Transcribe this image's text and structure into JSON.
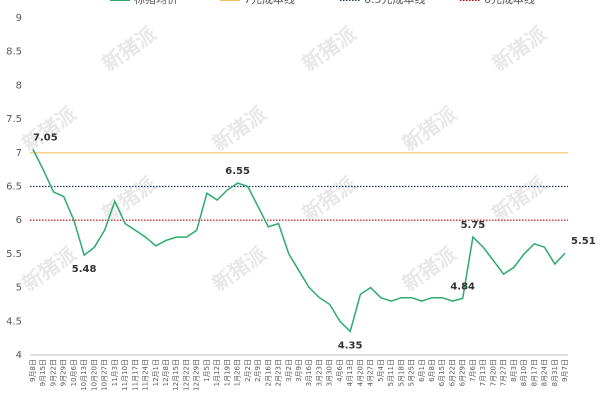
{
  "chart_data": {
    "type": "line",
    "watermark": "新猪派",
    "categories": [
      "9月8日",
      "9月15日",
      "9月22日",
      "9月29日",
      "10月6日",
      "10月13日",
      "10月20日",
      "10月27日",
      "11月3日",
      "11月10日",
      "11月17日",
      "11月24日",
      "12月1日",
      "12月8日",
      "12月15日",
      "12月22日",
      "12月29日",
      "1月5日",
      "1月12日",
      "1月19日",
      "1月26日",
      "2月2日",
      "2月9日",
      "2月16日",
      "2月23日",
      "3月2日",
      "3月9日",
      "3月16日",
      "3月23日",
      "3月30日",
      "4月6日",
      "4月13日",
      "4月20日",
      "4月27日",
      "5月4日",
      "5月11日",
      "5月18日",
      "5月25日",
      "6月1日",
      "6月8日",
      "6月15日",
      "6月22日",
      "6月29日",
      "7月6日",
      "7月13日",
      "7月20日",
      "7月27日",
      "8月3日",
      "8月10日",
      "8月17日",
      "8月24日",
      "8月31日",
      "9月7日"
    ],
    "series": [
      {
        "name": "标猪均价",
        "color": "#2eaa6e",
        "values": [
          7.05,
          6.75,
          6.42,
          6.35,
          6.0,
          5.48,
          5.6,
          5.85,
          6.28,
          5.95,
          5.85,
          5.75,
          5.62,
          5.7,
          5.75,
          5.75,
          5.85,
          6.4,
          6.3,
          6.45,
          6.55,
          6.5,
          6.2,
          5.9,
          5.95,
          5.5,
          5.25,
          5.0,
          4.85,
          4.75,
          4.5,
          4.35,
          4.9,
          5.0,
          4.85,
          4.8,
          4.85,
          4.85,
          4.8,
          4.85,
          4.85,
          4.8,
          4.84,
          5.75,
          5.6,
          5.4,
          5.2,
          5.3,
          5.5,
          5.65,
          5.6,
          5.35,
          5.51
        ],
        "value_labels": [
          "7.05",
          null,
          null,
          null,
          null,
          "5.48",
          null,
          null,
          null,
          null,
          null,
          null,
          null,
          null,
          null,
          null,
          null,
          null,
          null,
          null,
          "6.55",
          null,
          null,
          null,
          null,
          null,
          null,
          null,
          null,
          null,
          null,
          "4.35",
          null,
          null,
          null,
          null,
          null,
          null,
          null,
          null,
          null,
          null,
          "4.84",
          "5.75",
          null,
          null,
          null,
          null,
          null,
          null,
          null,
          null,
          "5.51"
        ]
      }
    ],
    "reference_lines": [
      {
        "name": "7元成本线",
        "color": "#f0c060",
        "value": 7,
        "style": "solid"
      },
      {
        "name": "6.5元成本线",
        "color": "#1f3864",
        "value": 6.5,
        "style": "dotted"
      },
      {
        "name": "6元成本线",
        "color": "#c00000",
        "value": 6,
        "style": "dotted"
      }
    ],
    "ylim": [
      4,
      9
    ],
    "yticks": [
      4,
      4.5,
      5,
      5.5,
      6,
      6.5,
      7,
      7.5,
      8,
      8.5,
      9
    ],
    "grid": false
  }
}
